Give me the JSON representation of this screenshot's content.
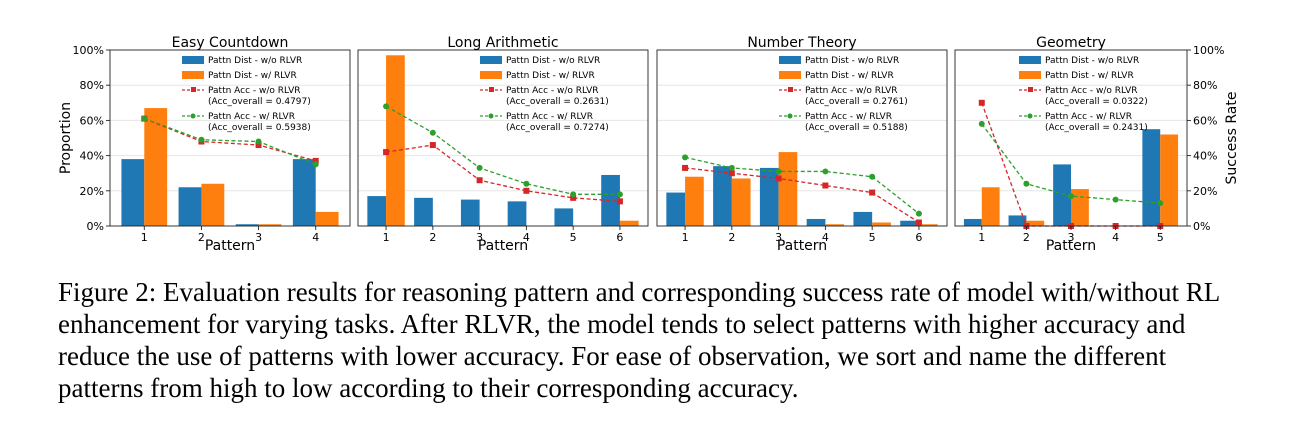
{
  "figure": {
    "left_ylabel": "Proportion",
    "right_ylabel": "Success Rate",
    "left_ticks": [
      "0%",
      "20%",
      "40%",
      "60%",
      "80%",
      "100%"
    ],
    "right_ticks": [
      "0%",
      "20%",
      "40%",
      "60%",
      "80%",
      "100%"
    ],
    "colors": {
      "dist_wo": "#1f77b4",
      "dist_w": "#ff7f0e",
      "acc_wo": "#d62728",
      "acc_w": "#2ca02c"
    }
  },
  "chart_data": [
    {
      "type": "bar",
      "title": "Easy Countdown",
      "xlabel": "Pattern",
      "ylabel": "Proportion",
      "y2label": "Success Rate",
      "categories": [
        "1",
        "2",
        "3",
        "4"
      ],
      "ylim": [
        0,
        1
      ],
      "grid": true,
      "legend_position": "top-right",
      "series": [
        {
          "name": "Pattn Dist - w/o RLVR",
          "kind": "bar",
          "values": [
            0.38,
            0.22,
            0.01,
            0.38
          ]
        },
        {
          "name": "Pattn Dist - w/ RLVR",
          "kind": "bar",
          "values": [
            0.67,
            0.24,
            0.01,
            0.08
          ]
        },
        {
          "name": "Pattn Acc - w/o RLVR",
          "overall": "(Acc_overall = 0.4797)",
          "kind": "line",
          "values": [
            0.61,
            0.48,
            0.46,
            0.37
          ]
        },
        {
          "name": "Pattn Acc - w/ RLVR",
          "overall": "(Acc_overall = 0.5938)",
          "kind": "line",
          "values": [
            0.61,
            0.49,
            0.48,
            0.35
          ]
        }
      ]
    },
    {
      "type": "bar",
      "title": "Long Arithmetic",
      "xlabel": "Pattern",
      "ylabel": "Proportion",
      "y2label": "Success Rate",
      "categories": [
        "1",
        "2",
        "3",
        "4",
        "5",
        "6"
      ],
      "ylim": [
        0,
        1
      ],
      "grid": true,
      "legend_position": "top-right",
      "series": [
        {
          "name": "Pattn Dist - w/o RLVR",
          "kind": "bar",
          "values": [
            0.17,
            0.16,
            0.15,
            0.14,
            0.1,
            0.29
          ]
        },
        {
          "name": "Pattn Dist - w/ RLVR",
          "kind": "bar",
          "values": [
            0.97,
            0.0,
            0.0,
            0.0,
            0.0,
            0.03
          ]
        },
        {
          "name": "Pattn Acc - w/o RLVR",
          "overall": "(Acc_overall = 0.2631)",
          "kind": "line",
          "values": [
            0.42,
            0.46,
            0.26,
            0.2,
            0.16,
            0.14
          ]
        },
        {
          "name": "Pattn Acc - w/ RLVR",
          "overall": "(Acc_overall = 0.7274)",
          "kind": "line",
          "values": [
            0.68,
            0.53,
            0.33,
            0.24,
            0.18,
            0.18
          ]
        }
      ]
    },
    {
      "type": "bar",
      "title": "Number Theory",
      "xlabel": "Pattern",
      "ylabel": "Proportion",
      "y2label": "Success Rate",
      "categories": [
        "1",
        "2",
        "3",
        "4",
        "5",
        "6"
      ],
      "ylim": [
        0,
        1
      ],
      "grid": true,
      "legend_position": "top-right",
      "series": [
        {
          "name": "Pattn Dist - w/o RLVR",
          "kind": "bar",
          "values": [
            0.19,
            0.34,
            0.33,
            0.04,
            0.08,
            0.03
          ]
        },
        {
          "name": "Pattn Dist - w/ RLVR",
          "kind": "bar",
          "values": [
            0.28,
            0.27,
            0.42,
            0.01,
            0.02,
            0.01
          ]
        },
        {
          "name": "Pattn Acc - w/o RLVR",
          "overall": "(Acc_overall = 0.2761)",
          "kind": "line",
          "values": [
            0.33,
            0.3,
            0.27,
            0.23,
            0.19,
            0.02
          ]
        },
        {
          "name": "Pattn Acc - w/ RLVR",
          "overall": "(Acc_overall = 0.5188)",
          "kind": "line",
          "values": [
            0.39,
            0.33,
            0.31,
            0.31,
            0.28,
            0.07
          ]
        }
      ]
    },
    {
      "type": "bar",
      "title": "Geometry",
      "xlabel": "Pattern",
      "ylabel": "Proportion",
      "y2label": "Success Rate",
      "categories": [
        "1",
        "2",
        "3",
        "4",
        "5"
      ],
      "ylim": [
        0,
        1
      ],
      "grid": true,
      "legend_position": "top-right",
      "series": [
        {
          "name": "Pattn Dist - w/o RLVR",
          "kind": "bar",
          "values": [
            0.04,
            0.06,
            0.35,
            0.0,
            0.55
          ]
        },
        {
          "name": "Pattn Dist - w/ RLVR",
          "kind": "bar",
          "values": [
            0.22,
            0.03,
            0.21,
            0.0,
            0.52
          ]
        },
        {
          "name": "Pattn Acc - w/o RLVR",
          "overall": "(Acc_overall = 0.0322)",
          "kind": "line",
          "values": [
            0.7,
            0.0,
            0.0,
            0.0,
            0.0
          ]
        },
        {
          "name": "Pattn Acc - w/ RLVR",
          "overall": "(Acc_overall = 0.2431)",
          "kind": "line",
          "values": [
            0.58,
            0.24,
            0.17,
            0.15,
            0.13
          ]
        }
      ]
    }
  ],
  "caption": "Figure 2: Evaluation results for reasoning pattern and corresponding success rate of model with/without RL enhancement for varying tasks. After RLVR, the model tends to select patterns with higher accuracy and reduce the use of patterns with lower accuracy. For ease of observation, we sort and name the different patterns from high to low according to their corresponding accuracy."
}
